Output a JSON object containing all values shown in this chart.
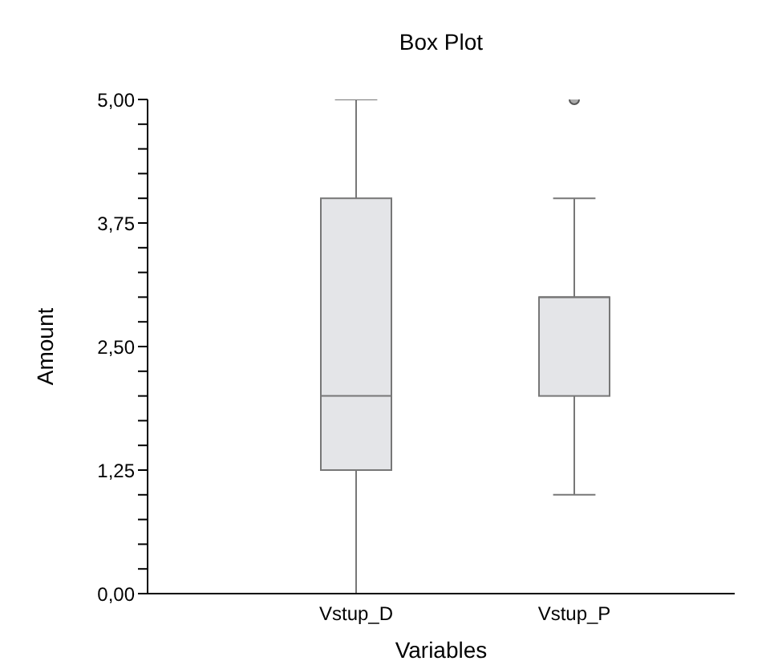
{
  "chart_data": {
    "type": "box",
    "title": "Box Plot",
    "xlabel": "Variables",
    "ylabel": "Amount",
    "categories": [
      "Vstup_D",
      "Vstup_P"
    ],
    "boxes": [
      {
        "low": 0,
        "q1": 1.25,
        "median": 2,
        "q3": 4,
        "high": 5
      },
      {
        "low": 1,
        "q1": 2,
        "median": 3,
        "q3": 3,
        "high": 4,
        "outliers": [
          5
        ]
      }
    ],
    "color": "#e4e5e8",
    "ylim": [
      0,
      5
    ],
    "yticks": [
      {
        "value": 0,
        "label": "0,00"
      },
      {
        "value": 0.25,
        "label": null
      },
      {
        "value": 0.5,
        "label": null
      },
      {
        "value": 0.75,
        "label": null
      },
      {
        "value": 1,
        "label": null
      },
      {
        "value": 1.25,
        "label": "1,25"
      },
      {
        "value": 1.5,
        "label": null
      },
      {
        "value": 1.75,
        "label": null
      },
      {
        "value": 2,
        "label": null
      },
      {
        "value": 2.25,
        "label": null
      },
      {
        "value": 2.5,
        "label": "2,50"
      },
      {
        "value": 2.75,
        "label": null
      },
      {
        "value": 3,
        "label": null
      },
      {
        "value": 3.25,
        "label": null
      },
      {
        "value": 3.5,
        "label": null
      },
      {
        "value": 3.75,
        "label": "3,75"
      },
      {
        "value": 4,
        "label": null
      },
      {
        "value": 4.25,
        "label": null
      },
      {
        "value": 4.5,
        "label": null
      },
      {
        "value": 4.75,
        "label": null
      },
      {
        "value": 5,
        "label": "5,00"
      }
    ],
    "grid": false,
    "legend": false
  }
}
